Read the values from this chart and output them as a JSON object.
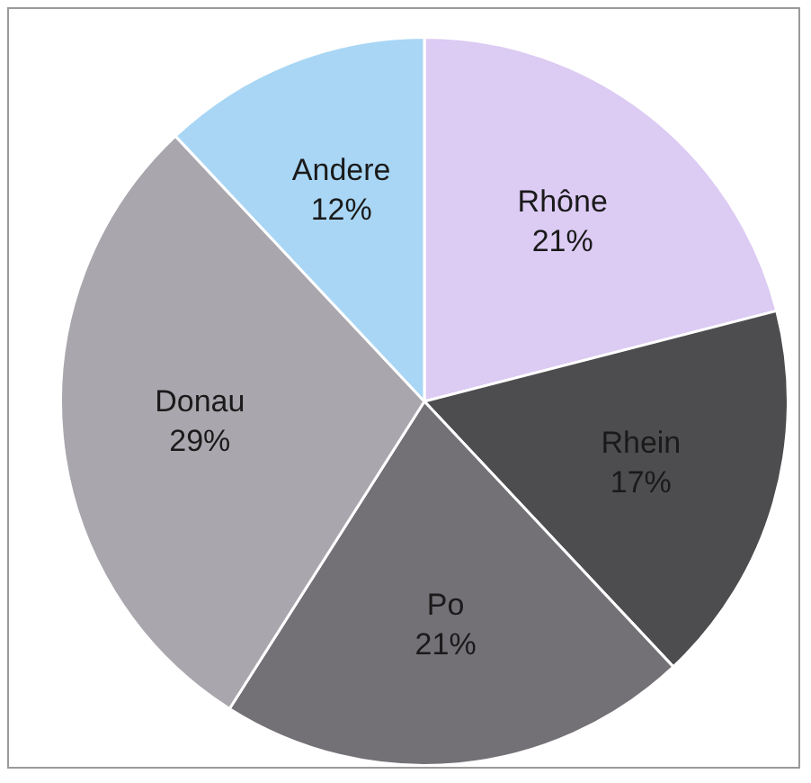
{
  "chart_data": {
    "type": "pie",
    "categories": [
      "Rhône",
      "Rhein",
      "Po",
      "Donau",
      "Andere"
    ],
    "values": [
      21,
      17,
      21,
      29,
      12
    ],
    "colors": [
      "#dccbf3",
      "#4d4d4f",
      "#737076",
      "#a9a7ad",
      "#a9d6f5"
    ],
    "value_labels": [
      "21%",
      "17%",
      "21%",
      "29%",
      "12%"
    ],
    "legend": false
  }
}
